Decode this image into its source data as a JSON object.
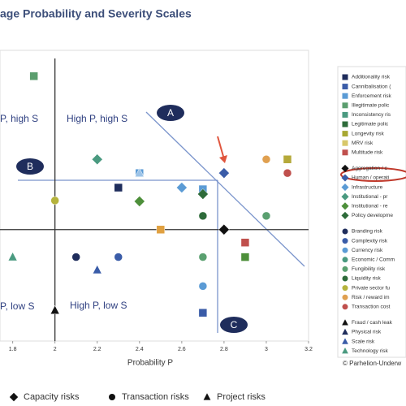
{
  "chart_data": {
    "type": "scatter",
    "title": "age Probability and Severity Scales",
    "x_label": "Probability P",
    "xlim": [
      1.74,
      3.2
    ],
    "ylim": [
      0,
      3.6
    ],
    "xticks": [
      1.8,
      2,
      2.2,
      2.4,
      2.6,
      2.8,
      3,
      3.2
    ],
    "reference_x": 2,
    "reference_y": 1.38,
    "quadrant_labels": [
      "P, high S",
      "High P, high S",
      "P, low S",
      "High P, low S"
    ],
    "zone_labels": [
      "A",
      "B",
      "C"
    ],
    "points": {
      "x": [
        1.9,
        2.2,
        2.4,
        2.4,
        2.3,
        2.0,
        2.4,
        2.6,
        2.7,
        2.7,
        2.8,
        3.0,
        3.1,
        3.1,
        2.7,
        3.0,
        2.5,
        2.8,
        2.9,
        2.9,
        1.8,
        2.1,
        2.3,
        2.7,
        2.2,
        2.7,
        2.0,
        2.7
      ],
      "y": [
        3.28,
        2.25,
        2.08,
        2.08,
        1.9,
        1.74,
        1.73,
        1.9,
        1.88,
        1.82,
        2.08,
        2.25,
        2.25,
        2.08,
        1.55,
        1.55,
        1.38,
        1.38,
        1.22,
        1.04,
        1.04,
        1.04,
        1.04,
        1.04,
        0.88,
        0.68,
        0.38,
        0.35
      ],
      "marker": [
        "square",
        "diamond",
        "square",
        "triangle",
        "square",
        "circle",
        "diamond",
        "diamond",
        "square",
        "diamond",
        "diamond",
        "circle",
        "square",
        "circle",
        "circle",
        "circle",
        "square",
        "diamond",
        "square",
        "square",
        "triangle",
        "circle",
        "circle",
        "circle",
        "triangle",
        "circle",
        "triangle",
        "square"
      ],
      "color": [
        "#5b9e6e",
        "#4a9a80",
        "#5b9bd5",
        "#9cc3e8",
        "#1f2d5c",
        "#b5b33c",
        "#4d8f3a",
        "#5b9bd5",
        "#5b9bd5",
        "#2e6b3a",
        "#3a5ca8",
        "#e0a050",
        "#b5a93a",
        "#c0504d",
        "#2e6b3a",
        "#5aa070",
        "#e0a040",
        "#111111",
        "#c0504d",
        "#4d8f3a",
        "#4a9a80",
        "#1f2d5c",
        "#3a5ca8",
        "#5aa070",
        "#3a5ca8",
        "#5b9bd5",
        "#111111",
        "#3a5ca8"
      ]
    },
    "legend": [
      {
        "label": "Additionality risk",
        "marker": "square",
        "color": "#1f2d5c"
      },
      {
        "label": "Cannibalisation (",
        "marker": "square",
        "color": "#3a5ca8"
      },
      {
        "label": "Enforcement risk",
        "marker": "square",
        "color": "#5b9bd5"
      },
      {
        "label": "Illegitimate polic",
        "marker": "square",
        "color": "#5b9e6e"
      },
      {
        "label": "Inconsistency ris",
        "marker": "square",
        "color": "#4a9a80"
      },
      {
        "label": "Legitimate polic",
        "marker": "square",
        "color": "#2e6b3a"
      },
      {
        "label": "Longevity risk",
        "marker": "square",
        "color": "#a8a832"
      },
      {
        "label": "MRV risk",
        "marker": "square",
        "color": "#d8c86a"
      },
      {
        "label": "Multitude risk",
        "marker": "square",
        "color": "#c0504d"
      },
      {
        "label": "Aggregation / c",
        "marker": "diamond",
        "color": "#111111"
      },
      {
        "label": "Human / operati",
        "marker": "diamond",
        "color": "#3a5ca8"
      },
      {
        "label": "Infrastructure",
        "marker": "diamond",
        "color": "#5b9bd5"
      },
      {
        "label": "Institutional - pr",
        "marker": "diamond",
        "color": "#4a9a80"
      },
      {
        "label": "Institutional - re",
        "marker": "diamond",
        "color": "#4d8f3a"
      },
      {
        "label": "Policy developme",
        "marker": "diamond",
        "color": "#2e6b3a"
      },
      {
        "label": "Branding risk",
        "marker": "circle",
        "color": "#1f2d5c"
      },
      {
        "label": "Complexity risk",
        "marker": "circle",
        "color": "#3a5ca8"
      },
      {
        "label": "Currency risk",
        "marker": "circle",
        "color": "#5b9bd5"
      },
      {
        "label": "Economic / Comm",
        "marker": "circle",
        "color": "#4a9a80"
      },
      {
        "label": "Fungibility risk",
        "marker": "circle",
        "color": "#5aa070"
      },
      {
        "label": "Liquidity risk",
        "marker": "circle",
        "color": "#2e6b3a"
      },
      {
        "label": "Private sector fu",
        "marker": "circle",
        "color": "#b5b33c"
      },
      {
        "label": "Risk / reward im",
        "marker": "circle",
        "color": "#e0a050"
      },
      {
        "label": "Transaction cost",
        "marker": "circle",
        "color": "#c0504d"
      },
      {
        "label": "Fraud / cash leak",
        "marker": "triangle",
        "color": "#111111"
      },
      {
        "label": "Physical risk",
        "marker": "triangle",
        "color": "#1f2d5c"
      },
      {
        "label": "Scale risk",
        "marker": "triangle",
        "color": "#3a5ca8"
      },
      {
        "label": "Technology risk",
        "marker": "triangle",
        "color": "#4a9a80"
      }
    ],
    "group_legend": [
      {
        "label": "Capacity risks",
        "marker": "diamond"
      },
      {
        "label": "Transaction risks",
        "marker": "circle"
      },
      {
        "label": "Project risks",
        "marker": "triangle"
      }
    ],
    "source": "© Parhelion-Underw"
  }
}
